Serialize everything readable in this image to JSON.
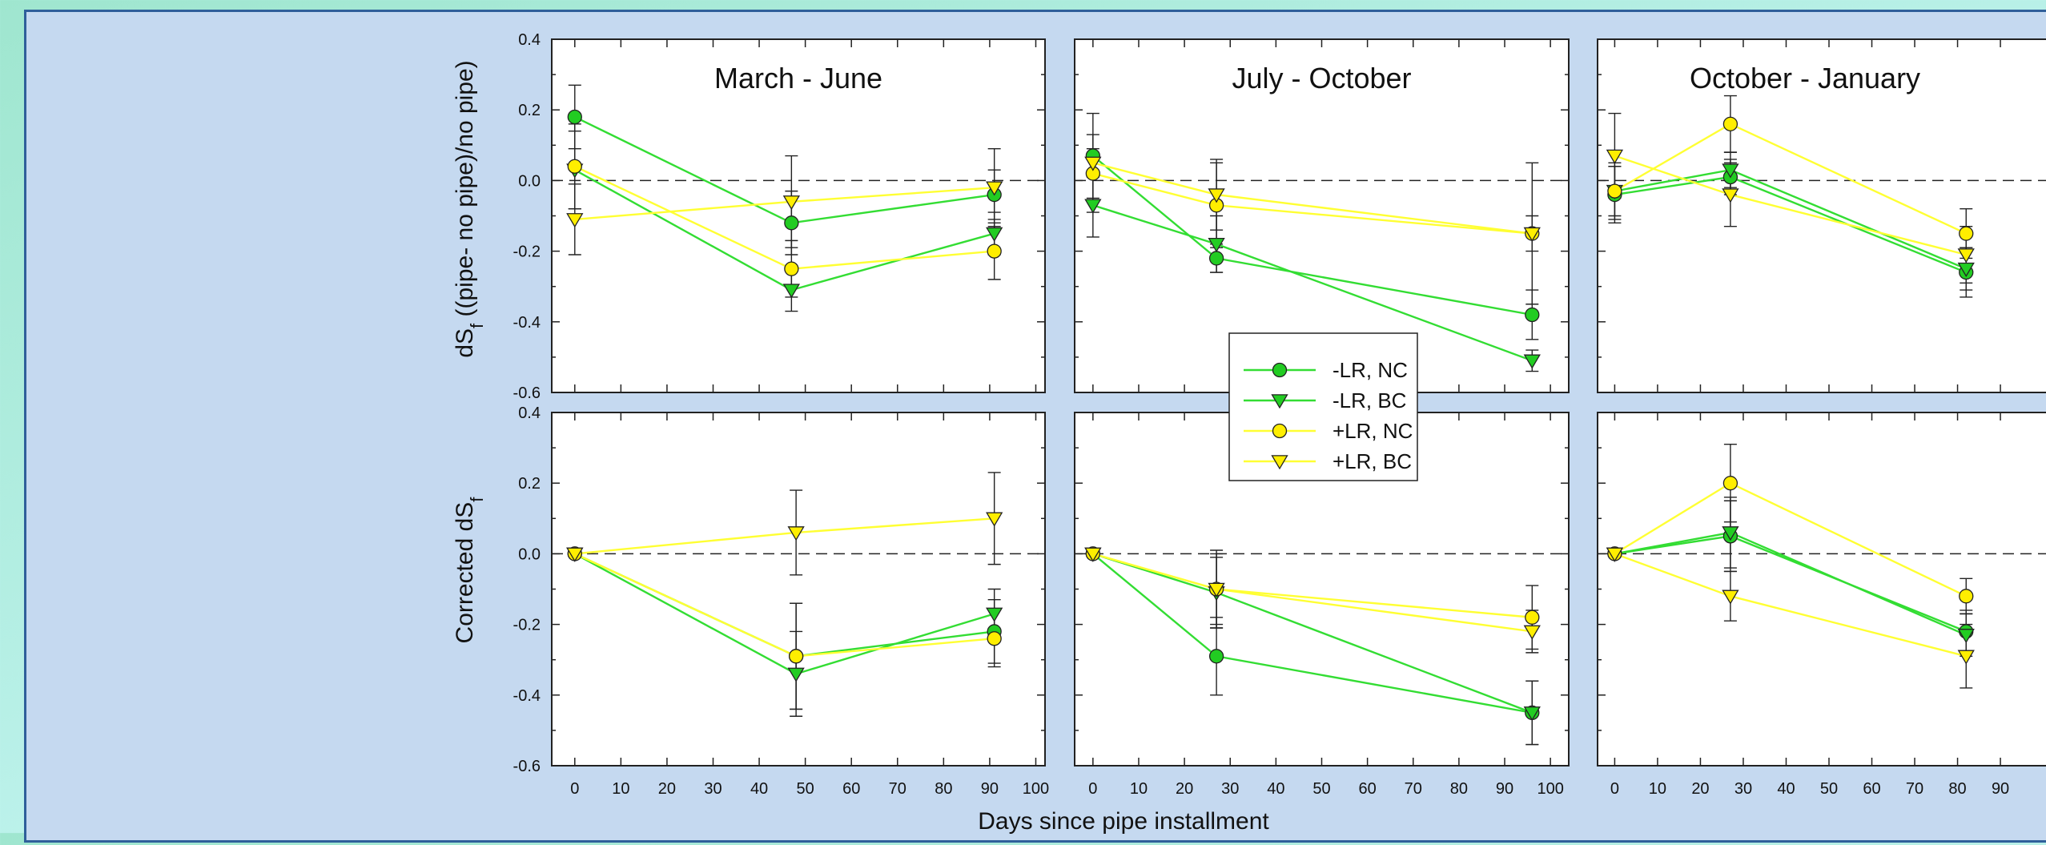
{
  "colors": {
    "green": "#33dd33",
    "yellow": "#ffff33",
    "green_fill": "#22cc22",
    "yellow_fill": "#ffee00"
  },
  "x_axis_label": "Days since pipe installment",
  "chart_data": [
    {
      "type": "line",
      "row": "top",
      "title": "March - June",
      "ylabel": "dS_f ((pipe- no pipe)/no pipe)",
      "xlim": [
        -5,
        102
      ],
      "ylim": [
        -0.6,
        0.4
      ],
      "xticks": [
        0,
        10,
        20,
        30,
        40,
        50,
        60,
        70,
        80,
        90,
        100
      ],
      "yticks": [
        -0.6,
        -0.4,
        -0.2,
        0.0,
        0.2,
        0.4
      ],
      "series": [
        {
          "name": "-LR, NC",
          "color": "green",
          "marker": "circle",
          "x": [
            0,
            47,
            91
          ],
          "y": [
            0.18,
            -0.12,
            -0.04
          ],
          "err": [
            0.09,
            0.09,
            0.07
          ]
        },
        {
          "name": "-LR, BC",
          "color": "green",
          "marker": "triangle",
          "x": [
            0,
            47,
            91
          ],
          "y": [
            0.03,
            -0.31,
            -0.15
          ],
          "err": [
            0.11,
            0.06,
            0.06
          ]
        },
        {
          "name": "+LR, NC",
          "color": "yellow",
          "marker": "circle",
          "x": [
            0,
            47,
            91
          ],
          "y": [
            0.04,
            -0.25,
            -0.2
          ],
          "err": [
            0.12,
            0.08,
            0.08
          ]
        },
        {
          "name": "+LR, BC",
          "color": "yellow",
          "marker": "triangle",
          "x": [
            0,
            47,
            91
          ],
          "y": [
            -0.11,
            -0.06,
            -0.02
          ],
          "err": [
            0.1,
            0.13,
            0.11
          ]
        }
      ]
    },
    {
      "type": "line",
      "row": "top",
      "title": "July - October",
      "ylabel": "",
      "xlim": [
        -4,
        104
      ],
      "ylim": [
        -0.6,
        0.4
      ],
      "xticks": [
        0,
        10,
        20,
        30,
        40,
        50,
        60,
        70,
        80,
        90,
        100
      ],
      "yticks": [
        -0.6,
        -0.4,
        -0.2,
        0.0,
        0.2,
        0.4
      ],
      "series": [
        {
          "name": "-LR, NC",
          "color": "green",
          "marker": "circle",
          "x": [
            0,
            27,
            96
          ],
          "y": [
            0.07,
            -0.22,
            -0.38
          ],
          "err": [
            0.06,
            0.04,
            0.07
          ]
        },
        {
          "name": "-LR, BC",
          "color": "green",
          "marker": "triangle",
          "x": [
            0,
            27,
            96
          ],
          "y": [
            -0.07,
            -0.18,
            -0.51
          ],
          "err": [
            0.09,
            0.08,
            0.03
          ]
        },
        {
          "name": "+LR, NC",
          "color": "yellow",
          "marker": "circle",
          "x": [
            0,
            27,
            96
          ],
          "y": [
            0.02,
            -0.07,
            -0.15
          ],
          "err": [
            0.07,
            0.12,
            0.05
          ]
        },
        {
          "name": "+LR, BC",
          "color": "yellow",
          "marker": "triangle",
          "x": [
            0,
            27,
            96
          ],
          "y": [
            0.05,
            -0.04,
            -0.15
          ],
          "err": [
            0.14,
            0.1,
            0.2
          ]
        }
      ]
    },
    {
      "type": "line",
      "row": "top",
      "title": "October - January",
      "ylabel": "",
      "xlim": [
        -4,
        104
      ],
      "ylim": [
        -0.6,
        0.4
      ],
      "xticks": [
        0,
        10,
        20,
        30,
        40,
        50,
        60,
        70,
        80,
        90
      ],
      "yticks": [
        -0.6,
        -0.4,
        -0.2,
        0.0,
        0.2,
        0.4
      ],
      "series": [
        {
          "name": "-LR, NC",
          "color": "green",
          "marker": "circle",
          "x": [
            0,
            27,
            82
          ],
          "y": [
            -0.04,
            0.01,
            -0.26
          ],
          "err": [
            0.08,
            0.05,
            0.07
          ]
        },
        {
          "name": "-LR, BC",
          "color": "green",
          "marker": "triangle",
          "x": [
            0,
            27,
            82
          ],
          "y": [
            -0.03,
            0.03,
            -0.25
          ],
          "err": [
            0.07,
            0.05,
            0.06
          ]
        },
        {
          "name": "+LR, NC",
          "color": "yellow",
          "marker": "circle",
          "x": [
            0,
            27,
            82
          ],
          "y": [
            -0.03,
            0.16,
            -0.15
          ],
          "err": [
            0.08,
            0.08,
            0.07
          ]
        },
        {
          "name": "+LR, BC",
          "color": "yellow",
          "marker": "triangle",
          "x": [
            0,
            27,
            82
          ],
          "y": [
            0.07,
            -0.04,
            -0.21
          ],
          "err": [
            0.12,
            0.09,
            0.08
          ]
        }
      ]
    },
    {
      "type": "line",
      "row": "bottom",
      "title": "",
      "ylabel": "Corrected dS_f",
      "xlim": [
        -5,
        102
      ],
      "ylim": [
        -0.6,
        0.4
      ],
      "xticks": [
        0,
        10,
        20,
        30,
        40,
        50,
        60,
        70,
        80,
        90,
        100
      ],
      "yticks": [
        -0.6,
        -0.4,
        -0.2,
        0.0,
        0.2,
        0.4
      ],
      "series": [
        {
          "name": "-LR, NC",
          "color": "green",
          "marker": "circle",
          "x": [
            0,
            48,
            91
          ],
          "y": [
            0.0,
            -0.29,
            -0.22
          ],
          "err": [
            0.0,
            0.15,
            0.09
          ]
        },
        {
          "name": "-LR, BC",
          "color": "green",
          "marker": "triangle",
          "x": [
            0,
            48,
            91
          ],
          "y": [
            0.0,
            -0.34,
            -0.17
          ],
          "err": [
            0.0,
            0.12,
            0.07
          ]
        },
        {
          "name": "+LR, NC",
          "color": "yellow",
          "marker": "circle",
          "x": [
            0,
            48,
            91
          ],
          "y": [
            0.0,
            -0.29,
            -0.24
          ],
          "err": [
            0.0,
            0.15,
            0.08
          ]
        },
        {
          "name": "+LR, BC",
          "color": "yellow",
          "marker": "triangle",
          "x": [
            0,
            48,
            91
          ],
          "y": [
            0.0,
            0.06,
            0.1
          ],
          "err": [
            0.0,
            0.12,
            0.13
          ]
        }
      ]
    },
    {
      "type": "line",
      "row": "bottom",
      "title": "",
      "ylabel": "",
      "xlim": [
        -4,
        104
      ],
      "ylim": [
        -0.6,
        0.4
      ],
      "xticks": [
        0,
        10,
        20,
        30,
        40,
        50,
        60,
        70,
        80,
        90,
        100
      ],
      "yticks": [
        -0.6,
        -0.4,
        -0.2,
        0.0,
        0.2,
        0.4
      ],
      "series": [
        {
          "name": "-LR, NC",
          "color": "green",
          "marker": "circle",
          "x": [
            0,
            27,
            96
          ],
          "y": [
            0.0,
            -0.29,
            -0.45
          ],
          "err": [
            0.0,
            0.11,
            0.09
          ]
        },
        {
          "name": "-LR, BC",
          "color": "green",
          "marker": "triangle",
          "x": [
            0,
            27,
            96
          ],
          "y": [
            0.0,
            -0.11,
            -0.45
          ],
          "err": [
            0.0,
            0.1,
            0.09
          ]
        },
        {
          "name": "+LR, NC",
          "color": "yellow",
          "marker": "circle",
          "x": [
            0,
            27,
            96
          ],
          "y": [
            0.0,
            -0.1,
            -0.18
          ],
          "err": [
            0.0,
            0.1,
            0.09
          ]
        },
        {
          "name": "+LR, BC",
          "color": "yellow",
          "marker": "triangle",
          "x": [
            0,
            27,
            96
          ],
          "y": [
            0.0,
            -0.1,
            -0.22
          ],
          "err": [
            0.0,
            0.11,
            0.06
          ]
        }
      ]
    },
    {
      "type": "line",
      "row": "bottom",
      "title": "",
      "ylabel": "",
      "xlim": [
        -4,
        104
      ],
      "ylim": [
        -0.6,
        0.4
      ],
      "xticks": [
        0,
        10,
        20,
        30,
        40,
        50,
        60,
        70,
        80,
        90
      ],
      "yticks": [
        -0.6,
        -0.4,
        -0.2,
        0.0,
        0.2,
        0.4
      ],
      "series": [
        {
          "name": "-LR, NC",
          "color": "green",
          "marker": "circle",
          "x": [
            0,
            27,
            82
          ],
          "y": [
            0.0,
            0.05,
            -0.22
          ],
          "err": [
            0.0,
            0.1,
            0.06
          ]
        },
        {
          "name": "-LR, BC",
          "color": "green",
          "marker": "triangle",
          "x": [
            0,
            27,
            82
          ],
          "y": [
            0.0,
            0.06,
            -0.23
          ],
          "err": [
            0.0,
            0.1,
            0.06
          ]
        },
        {
          "name": "+LR, NC",
          "color": "yellow",
          "marker": "circle",
          "x": [
            0,
            27,
            82
          ],
          "y": [
            0.0,
            0.2,
            -0.12
          ],
          "err": [
            0.0,
            0.11,
            0.05
          ]
        },
        {
          "name": "+LR, BC",
          "color": "yellow",
          "marker": "triangle",
          "x": [
            0,
            27,
            82
          ],
          "y": [
            0.0,
            -0.12,
            -0.29
          ],
          "err": [
            0.0,
            0.07,
            0.09
          ]
        }
      ]
    }
  ],
  "legend": [
    {
      "label": "-LR, NC",
      "color": "green",
      "marker": "circle"
    },
    {
      "label": "-LR, BC",
      "color": "green",
      "marker": "triangle"
    },
    {
      "label": "+LR, NC",
      "color": "yellow",
      "marker": "circle"
    },
    {
      "label": "+LR, BC",
      "color": "yellow",
      "marker": "triangle"
    }
  ]
}
